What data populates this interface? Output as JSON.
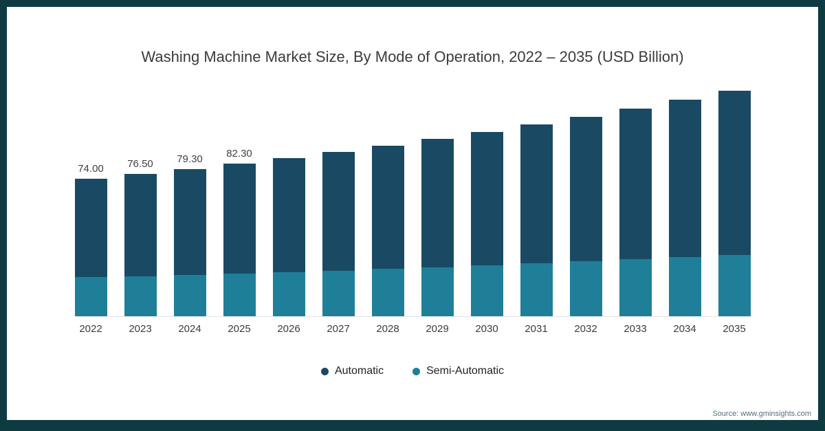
{
  "page": {
    "title": "Washing Machine Market Size, By Mode of Operation, 2022 – 2035 (USD Billion)",
    "source_text": "Source: www.gminsights.com"
  },
  "colors": {
    "frame": "#0e3b42",
    "automatic": "#1a4a63",
    "semi_automatic": "#1f7f99"
  },
  "legend": {
    "items": [
      {
        "label": "Automatic",
        "color": "#1a4a63"
      },
      {
        "label": "Semi-Automatic",
        "color": "#1f7f99"
      }
    ]
  },
  "chart_data": {
    "type": "bar",
    "stacked": true,
    "title": "Washing Machine Market Size, By Mode of Operation, 2022 – 2035 (USD Billion)",
    "unit": "USD Billion",
    "categories": [
      "2022",
      "2023",
      "2024",
      "2025",
      "2026",
      "2027",
      "2028",
      "2029",
      "2030",
      "2031",
      "2032",
      "2033",
      "2034",
      "2035"
    ],
    "series": [
      {
        "name": "Automatic",
        "color": "#1a4a63",
        "values": [
          53.0,
          54.9,
          57.0,
          59.3,
          61.5,
          64.0,
          66.5,
          69.2,
          72.0,
          75.0,
          78.1,
          81.4,
          84.9,
          88.6
        ]
      },
      {
        "name": "Semi-Automatic",
        "color": "#1f7f99",
        "values": [
          21.0,
          21.6,
          22.3,
          23.0,
          23.8,
          24.6,
          25.5,
          26.4,
          27.4,
          28.4,
          29.5,
          30.6,
          31.8,
          33.0
        ]
      }
    ],
    "totals": [
      74.0,
      76.5,
      79.3,
      82.3,
      85.3,
      88.6,
      92.0,
      95.6,
      99.4,
      103.4,
      107.6,
      112.0,
      116.7,
      121.6
    ],
    "data_labels": [
      "74.00",
      "76.50",
      "79.30",
      "82.30",
      "",
      "",
      "",
      "",
      "",
      "",
      "",
      "",
      "",
      ""
    ],
    "xlabel": "",
    "ylabel": "",
    "legend_position": "bottom",
    "grid": false
  }
}
